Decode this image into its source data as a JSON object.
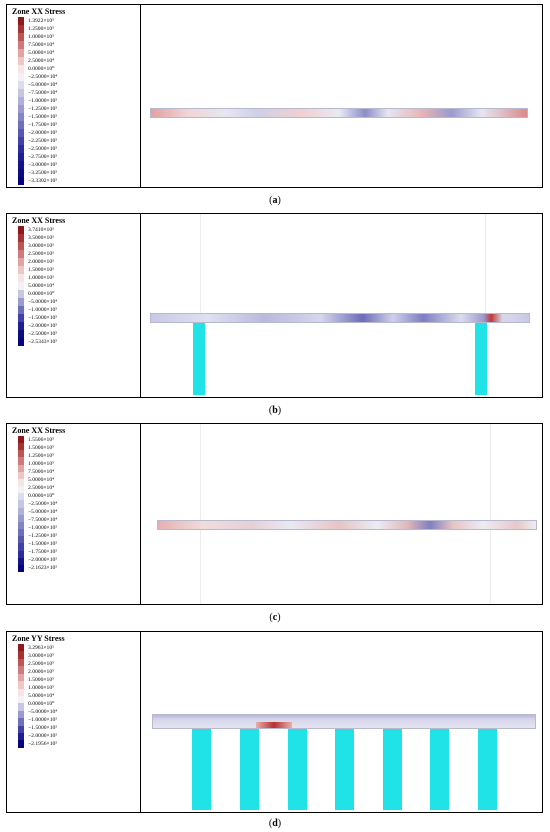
{
  "panels": [
    {
      "title": "Zone XX Stress",
      "caption_letter": "a",
      "colors": [
        "#8c1a1a",
        "#a83232",
        "#bd5555",
        "#cf7a7a",
        "#e1a4a4",
        "#eec6c6",
        "#f7e4e4",
        "#f2f2f6",
        "#dcdcec",
        "#c6c6e2",
        "#b0b0d8",
        "#9a9ace",
        "#8484c4",
        "#6e6eba",
        "#5858b0",
        "#4242a6",
        "#2c2c9c",
        "#1e1e92",
        "#141488",
        "#0c0c7e",
        "#06067a"
      ],
      "ticks": [
        "1.3922×10⁵",
        "1.2500×10⁵",
        "1.0000×10⁵",
        "7.5000×10⁴",
        "5.0000×10⁴",
        "2.5000×10⁴",
        "0.0000×10⁰",
        "−2.5000×10⁴",
        "−5.0000×10⁴",
        "−7.5000×10⁴",
        "−1.0000×10⁵",
        "−1.2500×10⁵",
        "−1.5000×10⁵",
        "−1.7500×10⁵",
        "−2.0000×10⁵",
        "−2.2500×10⁵",
        "−2.5000×10⁵",
        "−2.7500×10⁵",
        "−3.0000×10⁵",
        "−3.2500×10⁵",
        "−3.3302×10⁵"
      ]
    },
    {
      "title": "Zone XX Stress",
      "caption_letter": "b",
      "colors": [
        "#8c1a1a",
        "#a83232",
        "#bd5555",
        "#cf7a7a",
        "#e1a4a4",
        "#eec6c6",
        "#f7e4e4",
        "#f2f2f6",
        "#c6c6e2",
        "#9a9ace",
        "#6e6eba",
        "#4242a6",
        "#1e1e92",
        "#0c0c7e",
        "#06067a"
      ],
      "ticks": [
        "3.7410×10⁵",
        "3.5000×10⁵",
        "3.0000×10⁵",
        "2.5000×10⁵",
        "2.0000×10⁵",
        "1.5000×10⁵",
        "1.0000×10⁵",
        "5.0000×10⁴",
        "0.0000×10⁰",
        "−5.0000×10⁴",
        "−1.0000×10⁵",
        "−1.5000×10⁵",
        "−2.0000×10⁵",
        "−2.5000×10⁵",
        "−2.5343×10⁵"
      ]
    },
    {
      "title": "Zone XX Stress",
      "caption_letter": "c",
      "colors": [
        "#8c1a1a",
        "#a83232",
        "#bd5555",
        "#cf7a7a",
        "#e1a4a4",
        "#eec6c6",
        "#f7e4e4",
        "#f2f2f6",
        "#dcdcec",
        "#c6c6e2",
        "#b0b0d8",
        "#9a9ace",
        "#8484c4",
        "#6e6eba",
        "#5858b0",
        "#4242a6",
        "#2c2c9c",
        "#141488",
        "#06067a"
      ],
      "ticks": [
        "1.5506×10⁵",
        "1.5000×10⁵",
        "1.2500×10⁵",
        "1.0000×10⁵",
        "7.5000×10⁴",
        "5.0000×10⁴",
        "2.5000×10⁴",
        "0.0000×10⁰",
        "−2.5000×10⁴",
        "−5.0000×10⁴",
        "−7.5000×10⁴",
        "−1.0000×10⁵",
        "−1.2500×10⁵",
        "−1.5000×10⁵",
        "−1.7500×10⁵",
        "−2.0000×10⁵",
        "−2.1623×10⁵"
      ]
    },
    {
      "title": "Zone YY Stress",
      "caption_letter": "d",
      "colors": [
        "#8c1a1a",
        "#a83232",
        "#bd5555",
        "#cf7a7a",
        "#e1a4a4",
        "#eec6c6",
        "#f7e4e4",
        "#f2f2f6",
        "#c6c6e2",
        "#9a9ace",
        "#6e6eba",
        "#4242a6",
        "#1e1e92",
        "#06067a"
      ],
      "ticks": [
        "3.2963×10⁵",
        "3.0000×10⁵",
        "2.5000×10⁵",
        "2.0000×10⁵",
        "1.5000×10⁵",
        "1.0000×10⁵",
        "5.0000×10⁴",
        "0.0000×10⁰",
        "−5.0000×10⁴",
        "−1.0000×10⁵",
        "−1.5000×10⁵",
        "−2.0000×10⁵",
        "−2.1956×10⁵"
      ]
    }
  ],
  "pillar_color": "#1fe3e6"
}
